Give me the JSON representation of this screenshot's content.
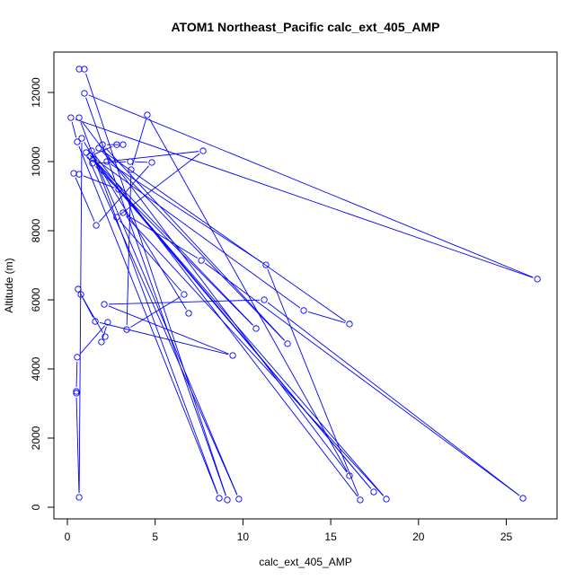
{
  "chart_data": {
    "type": "line",
    "style": "points-and-lines",
    "title": "ATOM1 Northeast_Pacific calc_ext_405_AMP",
    "xlabel": "calc_ext_405_AMP",
    "ylabel": "Altitude (m)",
    "xlim": [
      0,
      27.5
    ],
    "ylim": [
      0,
      13000
    ],
    "xticks": [
      0,
      5,
      10,
      15,
      20,
      25
    ],
    "yticks": [
      0,
      2000,
      4000,
      6000,
      8000,
      10000,
      12000
    ],
    "grid": false,
    "color": "#0000ff",
    "series": [
      {
        "x": [
          0.67,
          0.97,
          9.11,
          0.97,
          26.77,
          0.2,
          0.56,
          8.65,
          0.67,
          16.07,
          4.55,
          3.63,
          3.38,
          6.65,
          2.81,
          7.73,
          2.25,
          11.31,
          16.68,
          1.38,
          9.77,
          1.07,
          13.46,
          16.07,
          1.79,
          12.54,
          2.0,
          3.17,
          2.81,
          1.28,
          17.45,
          1.48,
          10.75,
          1.43,
          3.58,
          4.81,
          1.64,
          0.36,
          0.67,
          2.92,
          18.17,
          3.17,
          7.63,
          25.95,
          11.21,
          2.1,
          9.42,
          1.59,
          0.61,
          0.77,
          2.15,
          1.94,
          2.3,
          0.56,
          0.51,
          0.51,
          0.67,
          0.82,
          6.91
        ],
        "y": [
          12675,
          12675,
          210,
          11975,
          6600,
          11270,
          10570,
          260,
          11270,
          910,
          11350,
          9765,
          5140,
          6155,
          8390,
          10310,
          10000,
          7010,
          210,
          10310,
          235,
          10260,
          5690,
          5300,
          10390,
          4730,
          10490,
          10490,
          10490,
          10155,
          440,
          10080,
          5170,
          9950,
          10000,
          9975,
          8155,
          9660,
          9635,
          9195,
          235,
          8520,
          7140,
          260,
          6000,
          5870,
          4390,
          5375,
          6310,
          6155,
          4935,
          4780,
          5350,
          4340,
          3350,
          3300,
          285,
          10675,
          5610
        ]
      }
    ]
  }
}
